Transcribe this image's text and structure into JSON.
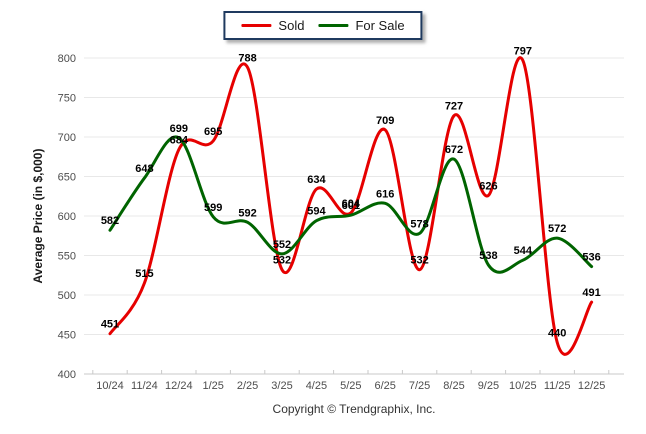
{
  "chart_data": {
    "type": "line",
    "title": "",
    "xlabel": "",
    "ylabel": "Average Price (in $,000)",
    "categories": [
      "10/24",
      "11/24",
      "12/24",
      "1/25",
      "2/25",
      "3/25",
      "4/25",
      "5/25",
      "6/25",
      "7/25",
      "8/25",
      "9/25",
      "10/25",
      "11/25",
      "12/25"
    ],
    "series": [
      {
        "name": "Sold",
        "color": "#e60000",
        "values": [
          451,
          515,
          684,
          695,
          788,
          532,
          634,
          604,
          709,
          532,
          727,
          626,
          797,
          440,
          491
        ]
      },
      {
        "name": "For Sale",
        "color": "#006400",
        "values": [
          582,
          648,
          699,
          599,
          592,
          552,
          594,
          601,
          616,
          578,
          672,
          538,
          544,
          572,
          536
        ]
      }
    ],
    "ylim": [
      400,
      800
    ],
    "ytick_step": 50,
    "yticks": [
      400,
      450,
      500,
      550,
      600,
      650,
      700,
      750,
      800
    ],
    "grid": "horizontal",
    "legend_position": "top-center",
    "show_point_labels": true,
    "curve": "spline"
  },
  "legend": {
    "border_color": "#1f3a5f"
  },
  "footer": {
    "copyright": "Copyright © Trendgraphix, Inc."
  }
}
